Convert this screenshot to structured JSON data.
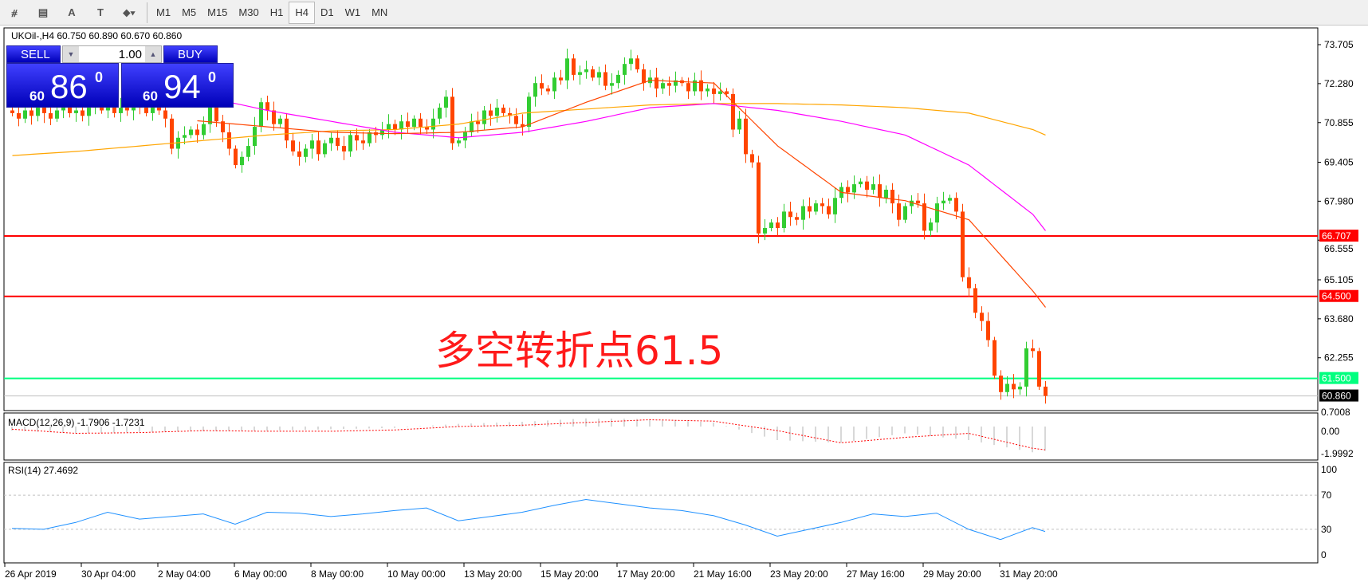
{
  "toolbar": {
    "icons": [
      "fibonacci-expansion-icon",
      "fibonacci-fan-icon",
      "text-icon",
      "text-label-icon",
      "arrows-icon"
    ],
    "timeframes": [
      "M1",
      "M5",
      "M15",
      "M30",
      "H1",
      "H4",
      "D1",
      "W1",
      "MN"
    ],
    "active": "H4"
  },
  "header": {
    "title": "UKOil-,H4  60.750 60.890 60.670 60.860"
  },
  "trade": {
    "sell": "SELL",
    "buy": "BUY",
    "volume": "1.00",
    "sell_big": "86",
    "sell_small": "60",
    "sell_sup": "0",
    "buy_big": "94",
    "buy_small": "60",
    "buy_sup": "0"
  },
  "annotation": "多空转折点61.5",
  "colors": {
    "bull": "#32cd32",
    "bear": "#ff4500",
    "ma_fast": "#ff4500",
    "ma_mid": "#ff00ff",
    "ma_slow": "#ffa500",
    "level": "#ff0000",
    "pivot": "#00ff7f"
  },
  "chart_data": {
    "type": "candlestick",
    "closes": [
      71.2,
      71.0,
      71.3,
      71.1,
      71.4,
      71.2,
      71.0,
      71.3,
      71.5,
      71.2,
      71.3,
      71.1,
      71.4,
      71.6,
      71.3,
      71.5,
      71.2,
      71.4,
      71.3,
      71.5,
      71.4,
      71.2,
      71.6,
      71.3,
      71.0,
      69.9,
      70.3,
      70.4,
      70.6,
      70.4,
      70.8,
      71.5,
      70.9,
      70.5,
      69.9,
      69.3,
      69.6,
      70.0,
      70.7,
      71.6,
      71.3,
      70.8,
      71.0,
      70.2,
      69.8,
      69.6,
      69.9,
      70.2,
      69.7,
      70.1,
      70.3,
      70.0,
      69.8,
      70.4,
      70.2,
      70.1,
      70.5,
      70.4,
      70.6,
      70.8,
      70.6,
      70.9,
      70.7,
      71.0,
      70.7,
      70.6,
      71.0,
      71.4,
      71.8,
      70.1,
      70.2,
      70.5,
      70.9,
      70.8,
      71.3,
      71.1,
      71.4,
      71.2,
      71.1,
      70.8,
      70.7,
      71.8,
      72.3,
      72.1,
      72.0,
      72.5,
      72.4,
      73.2,
      72.6,
      72.7,
      72.8,
      72.5,
      72.7,
      72.2,
      72.3,
      72.6,
      73.0,
      73.2,
      72.8,
      72.3,
      72.5,
      72.1,
      72.3,
      72.2,
      72.4,
      72.3,
      72.0,
      72.4,
      72.0,
      72.1,
      71.9,
      72.0,
      71.9,
      70.6,
      71.0,
      69.7,
      69.4,
      66.8,
      67.0,
      67.2,
      67.0,
      67.6,
      67.4,
      67.3,
      67.8,
      67.6,
      67.9,
      67.8,
      67.5,
      68.1,
      68.5,
      68.3,
      68.6,
      68.7,
      68.4,
      68.6,
      68.1,
      68.4,
      67.9,
      67.3,
      67.8,
      68.0,
      67.9,
      66.9,
      67.2,
      67.9,
      68.0,
      68.1,
      67.6,
      65.2,
      64.8,
      63.9,
      63.6,
      62.9,
      61.6,
      61.0,
      61.3,
      61.1,
      61.2,
      62.6,
      62.5,
      61.2,
      60.86
    ],
    "ma_index": [
      0,
      10,
      20,
      30,
      40,
      50,
      60,
      70,
      80,
      90,
      100,
      110,
      120,
      130,
      140,
      150,
      160,
      162
    ],
    "ma_fast": [
      71.0,
      71.0,
      71.1,
      70.9,
      70.7,
      70.5,
      70.45,
      70.5,
      70.7,
      71.6,
      72.4,
      72.3,
      70.0,
      68.3,
      68.0,
      67.3,
      64.7,
      64.1
    ],
    "ma_mid": [
      72.6,
      72.4,
      72.2,
      71.8,
      71.3,
      70.9,
      70.5,
      70.3,
      70.5,
      70.9,
      71.4,
      71.55,
      71.3,
      70.9,
      70.4,
      69.3,
      67.5,
      66.9
    ],
    "ma_slow": [
      69.65,
      69.8,
      70.0,
      70.2,
      70.4,
      70.55,
      70.6,
      70.8,
      71.2,
      71.35,
      71.5,
      71.55,
      71.55,
      71.5,
      71.4,
      71.2,
      70.6,
      70.4
    ],
    "price_ticks": [
      "73.705",
      "72.280",
      "70.855",
      "69.405",
      "67.980",
      "66.555",
      "65.105",
      "63.680",
      "62.255"
    ],
    "levels": [
      {
        "value": "66.707",
        "color": "#ff0000"
      },
      {
        "value": "64.500",
        "color": "#ff0000"
      },
      {
        "value": "61.500",
        "color": "#00ff7f"
      },
      {
        "value": "60.860",
        "color": "#000000"
      }
    ],
    "date_labels": [
      "26 Apr 2019",
      "30 Apr 04:00",
      "2 May 04:00",
      "6 May 00:00",
      "8 May 00:00",
      "10 May 00:00",
      "13 May 20:00",
      "15 May 20:00",
      "17 May 20:00",
      "21 May 16:00",
      "23 May 20:00",
      "27 May 16:00",
      "29 May 20:00",
      "31 May 20:00"
    ],
    "macd": {
      "label": "MACD(12,26,9) -1.7906 -1.7231",
      "ticks": [
        "0.7008",
        "0.00",
        "-1.9992"
      ],
      "main": [
        -0.3,
        -0.5,
        -0.4,
        -0.35,
        -0.3,
        -0.2,
        -0.1,
        0.2,
        0.35,
        0.6,
        0.55,
        0.3,
        -1.0,
        -1.2,
        -0.5,
        -1.0,
        -1.9,
        -1.79
      ],
      "signal": [
        -0.2,
        -0.5,
        -0.45,
        -0.3,
        -0.35,
        -0.35,
        -0.25,
        0.0,
        0.1,
        0.3,
        0.5,
        0.4,
        -0.3,
        -1.2,
        -0.8,
        -0.5,
        -1.6,
        -1.72
      ]
    },
    "rsi": {
      "label": "RSI(14) 27.4692",
      "ticks": [
        "100",
        "70",
        "30",
        "0"
      ],
      "index": [
        0,
        5,
        10,
        15,
        20,
        25,
        30,
        35,
        40,
        45,
        50,
        55,
        60,
        65,
        70,
        75,
        80,
        85,
        90,
        95,
        100,
        105,
        110,
        115,
        120,
        125,
        130,
        135,
        140,
        145,
        150,
        155,
        160,
        162
      ],
      "values": [
        31,
        30,
        38,
        50,
        42,
        45,
        48,
        36,
        50,
        49,
        45,
        48,
        52,
        55,
        40,
        45,
        50,
        58,
        65,
        60,
        55,
        52,
        46,
        35,
        22,
        30,
        38,
        48,
        45,
        49,
        30,
        18,
        32,
        27.5
      ]
    }
  }
}
